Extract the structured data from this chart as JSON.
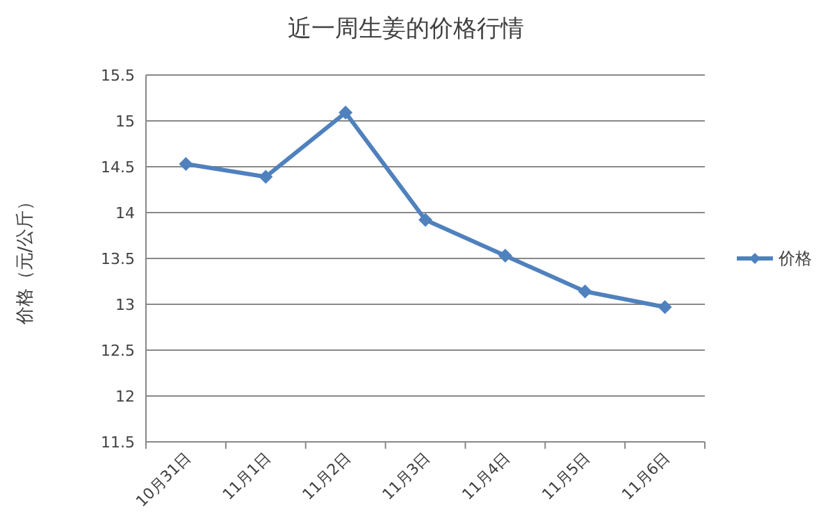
{
  "chart_data": {
    "type": "line",
    "title": "近一周生姜的价格行情",
    "ylabel": "价格（元/公斤）",
    "categories": [
      "10月31日",
      "11月1日",
      "11月2日",
      "11月3日",
      "11月4日",
      "11月5日",
      "11月6日"
    ],
    "series": [
      {
        "name": "价格",
        "color": "#4f81bd",
        "values": [
          14.53,
          14.39,
          15.09,
          13.92,
          13.53,
          13.14,
          12.97
        ]
      }
    ],
    "ylim": [
      11.5,
      15.5
    ],
    "yticks": [
      11.5,
      12,
      12.5,
      13,
      13.5,
      14,
      14.5,
      15,
      15.5
    ],
    "grid": "y",
    "legend": "right",
    "marker": "diamond",
    "line_style": "solid"
  }
}
